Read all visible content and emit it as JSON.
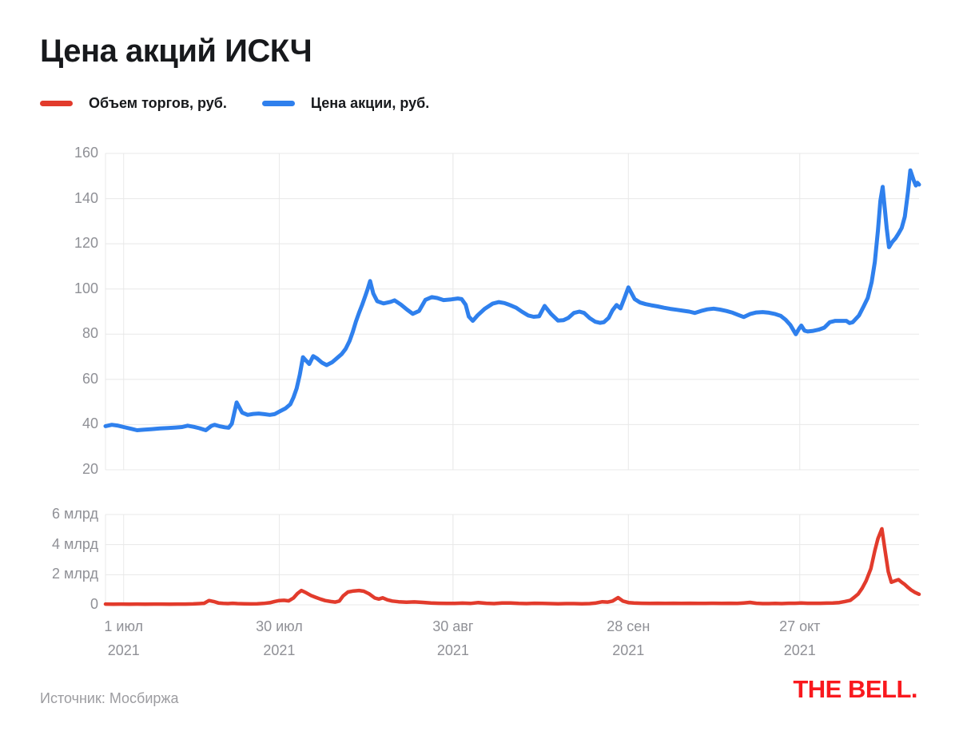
{
  "title": "Цена акций ИСКЧ",
  "legend": {
    "volume": {
      "label": "Объем торгов, руб.",
      "color": "#E23B2C"
    },
    "price": {
      "label": "Цена акции, руб.",
      "color": "#2F80ED"
    }
  },
  "footer": {
    "source": "Источник: Мосбиржа",
    "logo": "THE BELL.",
    "logo_color": "#F9191E"
  },
  "chart_data": {
    "type": "line",
    "title": "Цена акций ИСКЧ",
    "x_max": 103,
    "x_ticks": [
      {
        "day": 2.3,
        "l1": "1 июл",
        "l2": "2021"
      },
      {
        "day": 22,
        "l1": "30 июл",
        "l2": "2021"
      },
      {
        "day": 44,
        "l1": "30 авг",
        "l2": "2021"
      },
      {
        "day": 66.2,
        "l1": "28 сен",
        "l2": "2021"
      },
      {
        "day": 87.9,
        "l1": "27 окт",
        "l2": "2021"
      }
    ],
    "price_panel": {
      "name": "Цена акции, руб.",
      "color": "#2F80ED",
      "ylim": [
        20,
        160
      ],
      "y_ticks": [
        160,
        140,
        120,
        100,
        80,
        60,
        40,
        20
      ],
      "grid": true,
      "points": [
        [
          0,
          39.3
        ],
        [
          0.8,
          39.9
        ],
        [
          1.5,
          39.6
        ],
        [
          2.3,
          38.9
        ],
        [
          3.3,
          38.1
        ],
        [
          4,
          37.5
        ],
        [
          4.8,
          37.7
        ],
        [
          5.9,
          38
        ],
        [
          6.9,
          38.3
        ],
        [
          7.9,
          38.5
        ],
        [
          8.9,
          38.7
        ],
        [
          9.7,
          38.9
        ],
        [
          10.4,
          39.5
        ],
        [
          11.2,
          39
        ],
        [
          11.9,
          38.4
        ],
        [
          12.7,
          37.5
        ],
        [
          13.4,
          39.4
        ],
        [
          13.8,
          39.9
        ],
        [
          14.4,
          39.3
        ],
        [
          15.1,
          38.8
        ],
        [
          15.6,
          38.6
        ],
        [
          16,
          40.4
        ],
        [
          16.6,
          49.8
        ],
        [
          17.3,
          45.3
        ],
        [
          18,
          44.3
        ],
        [
          18.7,
          44.7
        ],
        [
          19.4,
          44.9
        ],
        [
          20.1,
          44.6
        ],
        [
          20.8,
          44.3
        ],
        [
          21.4,
          44.6
        ],
        [
          22.1,
          45.9
        ],
        [
          22.8,
          47.2
        ],
        [
          23.4,
          49
        ],
        [
          23.8,
          52
        ],
        [
          24.2,
          56
        ],
        [
          24.6,
          62
        ],
        [
          25,
          69.8
        ],
        [
          25.4,
          68.3
        ],
        [
          25.8,
          66.8
        ],
        [
          26.3,
          70.3
        ],
        [
          26.8,
          69.2
        ],
        [
          27.4,
          67.4
        ],
        [
          28,
          66.3
        ],
        [
          28.7,
          67.6
        ],
        [
          29.3,
          69.4
        ],
        [
          29.9,
          71.2
        ],
        [
          30.4,
          73.5
        ],
        [
          30.9,
          77
        ],
        [
          31.3,
          81
        ],
        [
          31.7,
          85.5
        ],
        [
          32.1,
          89.5
        ],
        [
          32.5,
          93
        ],
        [
          32.9,
          97
        ],
        [
          33.2,
          100
        ],
        [
          33.5,
          103.5
        ],
        [
          33.9,
          98
        ],
        [
          34.4,
          94.6
        ],
        [
          35.2,
          93.6
        ],
        [
          36.1,
          94.3
        ],
        [
          36.6,
          95
        ],
        [
          37.4,
          93.1
        ],
        [
          38.2,
          90.8
        ],
        [
          38.9,
          89
        ],
        [
          39.7,
          90.3
        ],
        [
          40.5,
          95.2
        ],
        [
          41.3,
          96.4
        ],
        [
          42,
          96
        ],
        [
          42.8,
          95.1
        ],
        [
          43.8,
          95.4
        ],
        [
          44.6,
          95.8
        ],
        [
          45.1,
          95.5
        ],
        [
          45.6,
          93
        ],
        [
          46,
          87.8
        ],
        [
          46.5,
          85.9
        ],
        [
          47.1,
          88.3
        ],
        [
          48,
          91.2
        ],
        [
          49,
          93.5
        ],
        [
          49.8,
          94.2
        ],
        [
          50.5,
          93.8
        ],
        [
          51.2,
          92.9
        ],
        [
          52,
          91.7
        ],
        [
          52.7,
          90
        ],
        [
          53.5,
          88.3
        ],
        [
          54.2,
          87.7
        ],
        [
          54.9,
          87.9
        ],
        [
          55.6,
          92.5
        ],
        [
          56.4,
          89
        ],
        [
          57.3,
          86
        ],
        [
          58,
          86.2
        ],
        [
          58.6,
          87.2
        ],
        [
          59.3,
          89.4
        ],
        [
          60,
          90
        ],
        [
          60.6,
          89.4
        ],
        [
          61.3,
          87.1
        ],
        [
          62,
          85.5
        ],
        [
          62.6,
          85
        ],
        [
          63.1,
          85.3
        ],
        [
          63.7,
          87.2
        ],
        [
          64.2,
          90.6
        ],
        [
          64.7,
          92.9
        ],
        [
          65.2,
          91.4
        ],
        [
          65.7,
          95.9
        ],
        [
          66.2,
          100.7
        ],
        [
          67,
          95.5
        ],
        [
          67.7,
          94
        ],
        [
          68.4,
          93.3
        ],
        [
          69.1,
          92.8
        ],
        [
          69.9,
          92.3
        ],
        [
          70.7,
          91.7
        ],
        [
          71.5,
          91.2
        ],
        [
          72.3,
          90.8
        ],
        [
          73.1,
          90.4
        ],
        [
          73.9,
          90
        ],
        [
          74.6,
          89.4
        ],
        [
          75.4,
          90.3
        ],
        [
          76.2,
          91
        ],
        [
          77,
          91.3
        ],
        [
          77.8,
          90.9
        ],
        [
          78.6,
          90.3
        ],
        [
          79.4,
          89.5
        ],
        [
          80.1,
          88.5
        ],
        [
          80.8,
          87.6
        ],
        [
          81.6,
          88.9
        ],
        [
          82.4,
          89.6
        ],
        [
          83.2,
          89.8
        ],
        [
          84,
          89.5
        ],
        [
          84.8,
          88.9
        ],
        [
          85.5,
          88.1
        ],
        [
          86.1,
          86.4
        ],
        [
          86.7,
          84.1
        ],
        [
          87.4,
          80
        ],
        [
          87.8,
          82.4
        ],
        [
          88.1,
          83.8
        ],
        [
          88.5,
          81.6
        ],
        [
          88.9,
          81.2
        ],
        [
          89.5,
          81.4
        ],
        [
          90.3,
          82
        ],
        [
          91,
          82.9
        ],
        [
          91.7,
          85.3
        ],
        [
          92.4,
          85.9
        ],
        [
          93.2,
          85.9
        ],
        [
          93.8,
          85.9
        ],
        [
          94.2,
          84.9
        ],
        [
          94.6,
          85.3
        ],
        [
          95.4,
          88.3
        ],
        [
          96,
          92.4
        ],
        [
          96.5,
          96
        ],
        [
          97,
          103
        ],
        [
          97.4,
          112
        ],
        [
          97.8,
          126
        ],
        [
          98.1,
          139
        ],
        [
          98.4,
          145.2
        ],
        [
          98.9,
          127
        ],
        [
          99.2,
          118.5
        ],
        [
          99.6,
          120.8
        ],
        [
          100,
          122.3
        ],
        [
          100.4,
          124.5
        ],
        [
          100.8,
          127
        ],
        [
          101.2,
          132
        ],
        [
          101.6,
          143
        ],
        [
          101.9,
          152.5
        ],
        [
          102.3,
          148.3
        ],
        [
          102.6,
          145.8
        ],
        [
          102.8,
          147
        ],
        [
          103,
          146.2
        ]
      ]
    },
    "volume_panel": {
      "name": "Объем торгов, руб.",
      "color": "#E23B2C",
      "unit": "млрд руб.",
      "ylim_bln": [
        0,
        6
      ],
      "y_ticks": [
        {
          "value": 6,
          "label": "6 млрд"
        },
        {
          "value": 4,
          "label": "4 млрд"
        },
        {
          "value": 2,
          "label": "2 млрд"
        },
        {
          "value": 0,
          "label": "0"
        }
      ],
      "grid": true,
      "points": [
        [
          0,
          0.05
        ],
        [
          1,
          0.04
        ],
        [
          2,
          0.05
        ],
        [
          3,
          0.04
        ],
        [
          4,
          0.05
        ],
        [
          5,
          0.04
        ],
        [
          6.1,
          0.05
        ],
        [
          7.1,
          0.05
        ],
        [
          8.1,
          0.04
        ],
        [
          9.1,
          0.05
        ],
        [
          10.1,
          0.05
        ],
        [
          11.1,
          0.06
        ],
        [
          11.9,
          0.08
        ],
        [
          12.5,
          0.1
        ],
        [
          13.1,
          0.28
        ],
        [
          13.7,
          0.22
        ],
        [
          14.3,
          0.12
        ],
        [
          14.9,
          0.09
        ],
        [
          15.5,
          0.08
        ],
        [
          16.1,
          0.1
        ],
        [
          16.7,
          0.08
        ],
        [
          17.6,
          0.07
        ],
        [
          18.4,
          0.06
        ],
        [
          19.2,
          0.07
        ],
        [
          20,
          0.09
        ],
        [
          20.8,
          0.14
        ],
        [
          21.4,
          0.22
        ],
        [
          22,
          0.28
        ],
        [
          22.6,
          0.3
        ],
        [
          23.2,
          0.26
        ],
        [
          23.8,
          0.45
        ],
        [
          24.3,
          0.75
        ],
        [
          24.8,
          0.95
        ],
        [
          25.4,
          0.8
        ],
        [
          26,
          0.62
        ],
        [
          26.6,
          0.5
        ],
        [
          27.2,
          0.38
        ],
        [
          27.8,
          0.28
        ],
        [
          28.5,
          0.22
        ],
        [
          29.1,
          0.18
        ],
        [
          29.6,
          0.25
        ],
        [
          30.1,
          0.6
        ],
        [
          30.7,
          0.85
        ],
        [
          31.4,
          0.92
        ],
        [
          32.1,
          0.95
        ],
        [
          32.7,
          0.9
        ],
        [
          33.4,
          0.72
        ],
        [
          34.1,
          0.45
        ],
        [
          34.6,
          0.38
        ],
        [
          35.1,
          0.46
        ],
        [
          35.7,
          0.33
        ],
        [
          36.3,
          0.25
        ],
        [
          37.1,
          0.2
        ],
        [
          38.1,
          0.17
        ],
        [
          39.1,
          0.19
        ],
        [
          40.2,
          0.16
        ],
        [
          41.2,
          0.12
        ],
        [
          42.2,
          0.1
        ],
        [
          43.2,
          0.09
        ],
        [
          44.2,
          0.09
        ],
        [
          45.2,
          0.11
        ],
        [
          46.2,
          0.09
        ],
        [
          47.2,
          0.15
        ],
        [
          48.2,
          0.1
        ],
        [
          49.2,
          0.08
        ],
        [
          50.2,
          0.12
        ],
        [
          51.3,
          0.12
        ],
        [
          52.3,
          0.09
        ],
        [
          53.3,
          0.08
        ],
        [
          54.3,
          0.1
        ],
        [
          55.3,
          0.09
        ],
        [
          56.3,
          0.08
        ],
        [
          57.3,
          0.07
        ],
        [
          58.3,
          0.08
        ],
        [
          59.3,
          0.08
        ],
        [
          60.3,
          0.07
        ],
        [
          61.3,
          0.08
        ],
        [
          62.1,
          0.12
        ],
        [
          62.9,
          0.2
        ],
        [
          63.6,
          0.18
        ],
        [
          64.2,
          0.25
        ],
        [
          64.9,
          0.48
        ],
        [
          65.5,
          0.25
        ],
        [
          66.2,
          0.15
        ],
        [
          66.9,
          0.12
        ],
        [
          67.9,
          0.1
        ],
        [
          68.9,
          0.09
        ],
        [
          69.9,
          0.1
        ],
        [
          70.9,
          0.09
        ],
        [
          71.9,
          0.1
        ],
        [
          72.9,
          0.09
        ],
        [
          74,
          0.1
        ],
        [
          75,
          0.09
        ],
        [
          76,
          0.09
        ],
        [
          77,
          0.1
        ],
        [
          78,
          0.09
        ],
        [
          79,
          0.1
        ],
        [
          80,
          0.09
        ],
        [
          80.8,
          0.12
        ],
        [
          81.6,
          0.16
        ],
        [
          82.4,
          0.1
        ],
        [
          83.2,
          0.08
        ],
        [
          84,
          0.08
        ],
        [
          84.8,
          0.09
        ],
        [
          85.6,
          0.08
        ],
        [
          86.5,
          0.1
        ],
        [
          87.3,
          0.1
        ],
        [
          88.1,
          0.12
        ],
        [
          88.9,
          0.1
        ],
        [
          89.7,
          0.1
        ],
        [
          90.5,
          0.1
        ],
        [
          91.3,
          0.11
        ],
        [
          92.1,
          0.12
        ],
        [
          92.9,
          0.15
        ],
        [
          93.6,
          0.22
        ],
        [
          94.3,
          0.3
        ],
        [
          94.8,
          0.5
        ],
        [
          95.3,
          0.72
        ],
        [
          95.8,
          1.1
        ],
        [
          96.3,
          1.6
        ],
        [
          96.9,
          2.4
        ],
        [
          97.4,
          3.6
        ],
        [
          97.8,
          4.4
        ],
        [
          98.3,
          5.05
        ],
        [
          98.7,
          3.6
        ],
        [
          99.1,
          2.2
        ],
        [
          99.5,
          1.5
        ],
        [
          100,
          1.6
        ],
        [
          100.4,
          1.67
        ],
        [
          100.8,
          1.5
        ],
        [
          101.2,
          1.35
        ],
        [
          101.6,
          1.15
        ],
        [
          102,
          0.98
        ],
        [
          102.5,
          0.82
        ],
        [
          103,
          0.7
        ]
      ]
    }
  }
}
